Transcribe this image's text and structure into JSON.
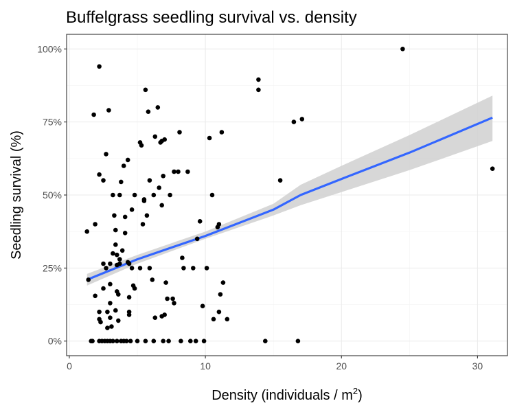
{
  "chart_data": {
    "type": "scatter",
    "title": "Buffelgrass seedling survival vs. density",
    "xlabel_main": "Density (individuals / m",
    "xlabel_sup": "2",
    "xlabel_close": ")",
    "ylabel": "Seedling survival (%)",
    "xlim": [
      -0.2,
      32.2
    ],
    "ylim": [
      -0.05,
      1.05
    ],
    "x_ticks": [
      0,
      10,
      20,
      30
    ],
    "x_tick_labels": [
      "0",
      "10",
      "20",
      "30"
    ],
    "y_ticks": [
      0,
      0.25,
      0.5,
      0.75,
      1.0
    ],
    "y_tick_labels": [
      "0%",
      "25%",
      "50%",
      "75%",
      "100%"
    ],
    "grid": true,
    "colors": {
      "points": "#000000",
      "fit_line": "#3366ff",
      "confidence_band": "#d3d3d3"
    },
    "points": [
      {
        "x": 1.3,
        "y": 0.375
      },
      {
        "x": 1.4,
        "y": 0.21
      },
      {
        "x": 1.6,
        "y": 0.0
      },
      {
        "x": 1.7,
        "y": 0.0
      },
      {
        "x": 1.8,
        "y": 0.775
      },
      {
        "x": 1.9,
        "y": 0.4
      },
      {
        "x": 1.9,
        "y": 0.155
      },
      {
        "x": 2.2,
        "y": 0.94
      },
      {
        "x": 2.2,
        "y": 0.57
      },
      {
        "x": 2.2,
        "y": 0.1
      },
      {
        "x": 2.2,
        "y": 0.075
      },
      {
        "x": 2.3,
        "y": 0.065
      },
      {
        "x": 2.2,
        "y": 0.0
      },
      {
        "x": 2.4,
        "y": 0.0
      },
      {
        "x": 2.5,
        "y": 0.55
      },
      {
        "x": 2.5,
        "y": 0.265
      },
      {
        "x": 2.5,
        "y": 0.18
      },
      {
        "x": 2.6,
        "y": 0.0
      },
      {
        "x": 2.7,
        "y": 0.64
      },
      {
        "x": 2.7,
        "y": 0.25
      },
      {
        "x": 2.8,
        "y": 0.1
      },
      {
        "x": 2.8,
        "y": 0.045
      },
      {
        "x": 2.8,
        "y": 0.0
      },
      {
        "x": 2.9,
        "y": 0.79
      },
      {
        "x": 3.0,
        "y": 0.265
      },
      {
        "x": 3.0,
        "y": 0.195
      },
      {
        "x": 3.0,
        "y": 0.13
      },
      {
        "x": 3.0,
        "y": 0.08
      },
      {
        "x": 3.0,
        "y": 0.0
      },
      {
        "x": 3.1,
        "y": 0.05
      },
      {
        "x": 3.2,
        "y": 0.5
      },
      {
        "x": 3.2,
        "y": 0.3
      },
      {
        "x": 3.2,
        "y": 0.0
      },
      {
        "x": 3.3,
        "y": 0.43
      },
      {
        "x": 3.4,
        "y": 0.38
      },
      {
        "x": 3.4,
        "y": 0.33
      },
      {
        "x": 3.4,
        "y": 0.105
      },
      {
        "x": 3.5,
        "y": 0.0
      },
      {
        "x": 3.5,
        "y": 0.295
      },
      {
        "x": 3.5,
        "y": 0.26
      },
      {
        "x": 3.5,
        "y": 0.17
      },
      {
        "x": 3.6,
        "y": 0.16
      },
      {
        "x": 3.6,
        "y": 0.07
      },
      {
        "x": 3.7,
        "y": 0.5
      },
      {
        "x": 3.7,
        "y": 0.28
      },
      {
        "x": 3.7,
        "y": 0.265
      },
      {
        "x": 3.8,
        "y": 0.545
      },
      {
        "x": 3.8,
        "y": 0.0
      },
      {
        "x": 3.9,
        "y": 0.31
      },
      {
        "x": 4.0,
        "y": 0.0
      },
      {
        "x": 4.0,
        "y": 0.6
      },
      {
        "x": 4.1,
        "y": 0.425
      },
      {
        "x": 4.1,
        "y": 0.37
      },
      {
        "x": 4.2,
        "y": 0.0
      },
      {
        "x": 4.3,
        "y": 0.62
      },
      {
        "x": 4.3,
        "y": 0.27
      },
      {
        "x": 4.4,
        "y": 0.265
      },
      {
        "x": 4.4,
        "y": 0.15
      },
      {
        "x": 4.4,
        "y": 0.1
      },
      {
        "x": 4.4,
        "y": 0.09
      },
      {
        "x": 4.5,
        "y": 0.0
      },
      {
        "x": 4.6,
        "y": 0.45
      },
      {
        "x": 4.6,
        "y": 0.25
      },
      {
        "x": 4.7,
        "y": 0.19
      },
      {
        "x": 4.8,
        "y": 0.18
      },
      {
        "x": 4.8,
        "y": 0.5
      },
      {
        "x": 5.0,
        "y": 0.0
      },
      {
        "x": 5.2,
        "y": 0.68
      },
      {
        "x": 5.2,
        "y": 0.25
      },
      {
        "x": 5.3,
        "y": 0.67
      },
      {
        "x": 5.4,
        "y": 0.4
      },
      {
        "x": 5.5,
        "y": 0.48
      },
      {
        "x": 5.5,
        "y": 0.485
      },
      {
        "x": 5.6,
        "y": 0.86
      },
      {
        "x": 5.6,
        "y": 0.0
      },
      {
        "x": 5.7,
        "y": 0.43
      },
      {
        "x": 5.8,
        "y": 0.785
      },
      {
        "x": 5.9,
        "y": 0.25
      },
      {
        "x": 5.9,
        "y": 0.55
      },
      {
        "x": 6.1,
        "y": 0.21
      },
      {
        "x": 6.2,
        "y": 0.5
      },
      {
        "x": 6.2,
        "y": 0.0
      },
      {
        "x": 6.3,
        "y": 0.7
      },
      {
        "x": 6.3,
        "y": 0.08
      },
      {
        "x": 6.5,
        "y": 0.8
      },
      {
        "x": 6.6,
        "y": 0.525
      },
      {
        "x": 6.7,
        "y": 0.68
      },
      {
        "x": 6.8,
        "y": 0.685
      },
      {
        "x": 6.8,
        "y": 0.465
      },
      {
        "x": 6.8,
        "y": 0.085
      },
      {
        "x": 6.9,
        "y": 0.565
      },
      {
        "x": 6.9,
        "y": 0.0
      },
      {
        "x": 7.0,
        "y": 0.69
      },
      {
        "x": 7.0,
        "y": 0.09
      },
      {
        "x": 7.1,
        "y": 0.2
      },
      {
        "x": 7.2,
        "y": 0.145
      },
      {
        "x": 7.3,
        "y": 0.0
      },
      {
        "x": 7.4,
        "y": 0.5
      },
      {
        "x": 7.6,
        "y": 0.145
      },
      {
        "x": 7.7,
        "y": 0.58
      },
      {
        "x": 7.7,
        "y": 0.13
      },
      {
        "x": 8.0,
        "y": 0.58
      },
      {
        "x": 8.1,
        "y": 0.715
      },
      {
        "x": 8.2,
        "y": 0.0
      },
      {
        "x": 8.3,
        "y": 0.285
      },
      {
        "x": 8.4,
        "y": 0.25
      },
      {
        "x": 8.7,
        "y": 0.58
      },
      {
        "x": 8.9,
        "y": 0.0
      },
      {
        "x": 9.1,
        "y": 0.25
      },
      {
        "x": 9.3,
        "y": 0.0
      },
      {
        "x": 9.4,
        "y": 0.35
      },
      {
        "x": 9.6,
        "y": 0.41
      },
      {
        "x": 9.8,
        "y": 0.12
      },
      {
        "x": 9.9,
        "y": 0.0
      },
      {
        "x": 10.1,
        "y": 0.25
      },
      {
        "x": 10.3,
        "y": 0.695
      },
      {
        "x": 10.5,
        "y": 0.5
      },
      {
        "x": 10.6,
        "y": 0.075
      },
      {
        "x": 10.9,
        "y": 0.39
      },
      {
        "x": 11.0,
        "y": 0.4
      },
      {
        "x": 11.0,
        "y": 0.1
      },
      {
        "x": 11.1,
        "y": 0.16
      },
      {
        "x": 11.2,
        "y": 0.715
      },
      {
        "x": 11.3,
        "y": 0.2
      },
      {
        "x": 11.6,
        "y": 0.075
      },
      {
        "x": 13.9,
        "y": 0.895
      },
      {
        "x": 13.9,
        "y": 0.86
      },
      {
        "x": 14.4,
        "y": 0.0
      },
      {
        "x": 15.5,
        "y": 0.55
      },
      {
        "x": 16.5,
        "y": 0.75
      },
      {
        "x": 16.8,
        "y": 0.0
      },
      {
        "x": 17.1,
        "y": 0.76
      },
      {
        "x": 24.5,
        "y": 1.0
      },
      {
        "x": 31.1,
        "y": 0.59
      }
    ],
    "fit": {
      "x": [
        1.3,
        5.0,
        10.0,
        15.0,
        17.0,
        20.0,
        25.0,
        31.1
      ],
      "y": [
        0.21,
        0.28,
        0.36,
        0.45,
        0.5,
        0.555,
        0.645,
        0.765
      ],
      "lower": [
        0.19,
        0.265,
        0.35,
        0.43,
        0.465,
        0.51,
        0.585,
        0.685
      ],
      "upper": [
        0.23,
        0.295,
        0.375,
        0.47,
        0.535,
        0.6,
        0.705,
        0.84
      ]
    }
  }
}
